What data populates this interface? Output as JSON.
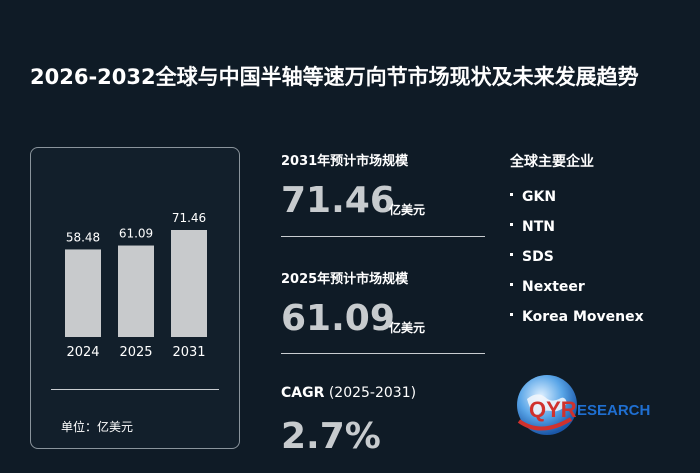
{
  "title": "2026-2032全球与中国半轴等速万向节市场现状及未来发展趋势",
  "chart_data": {
    "type": "bar",
    "categories": [
      "2024",
      "2025",
      "2031"
    ],
    "values": [
      58.48,
      61.09,
      71.46
    ],
    "value_labels": [
      "58.48",
      "61.09",
      "71.46"
    ],
    "unit_label": "单位：亿美元",
    "bar_color": "#c8cacc"
  },
  "market_2031": {
    "title": "2031年预计市场规模",
    "value": "71.46",
    "unit": "亿美元"
  },
  "market_2025": {
    "title": "2025年预计市场规模",
    "value": "61.09",
    "unit": "亿美元"
  },
  "cagr": {
    "label": "CAGR",
    "period": "(2025-2031)",
    "value": "2.7%"
  },
  "companies": {
    "title": "全球主要企业",
    "items": [
      "GKN",
      "NTN",
      "SDS",
      "Nexteer",
      "Korea Movenex"
    ]
  },
  "logo": {
    "text_a": "QYR",
    "text_b": "ESEARCH",
    "colors": {
      "blue": "#1f6fd1",
      "red": "#d0312d"
    },
    "icon": "globe-logo-icon"
  }
}
